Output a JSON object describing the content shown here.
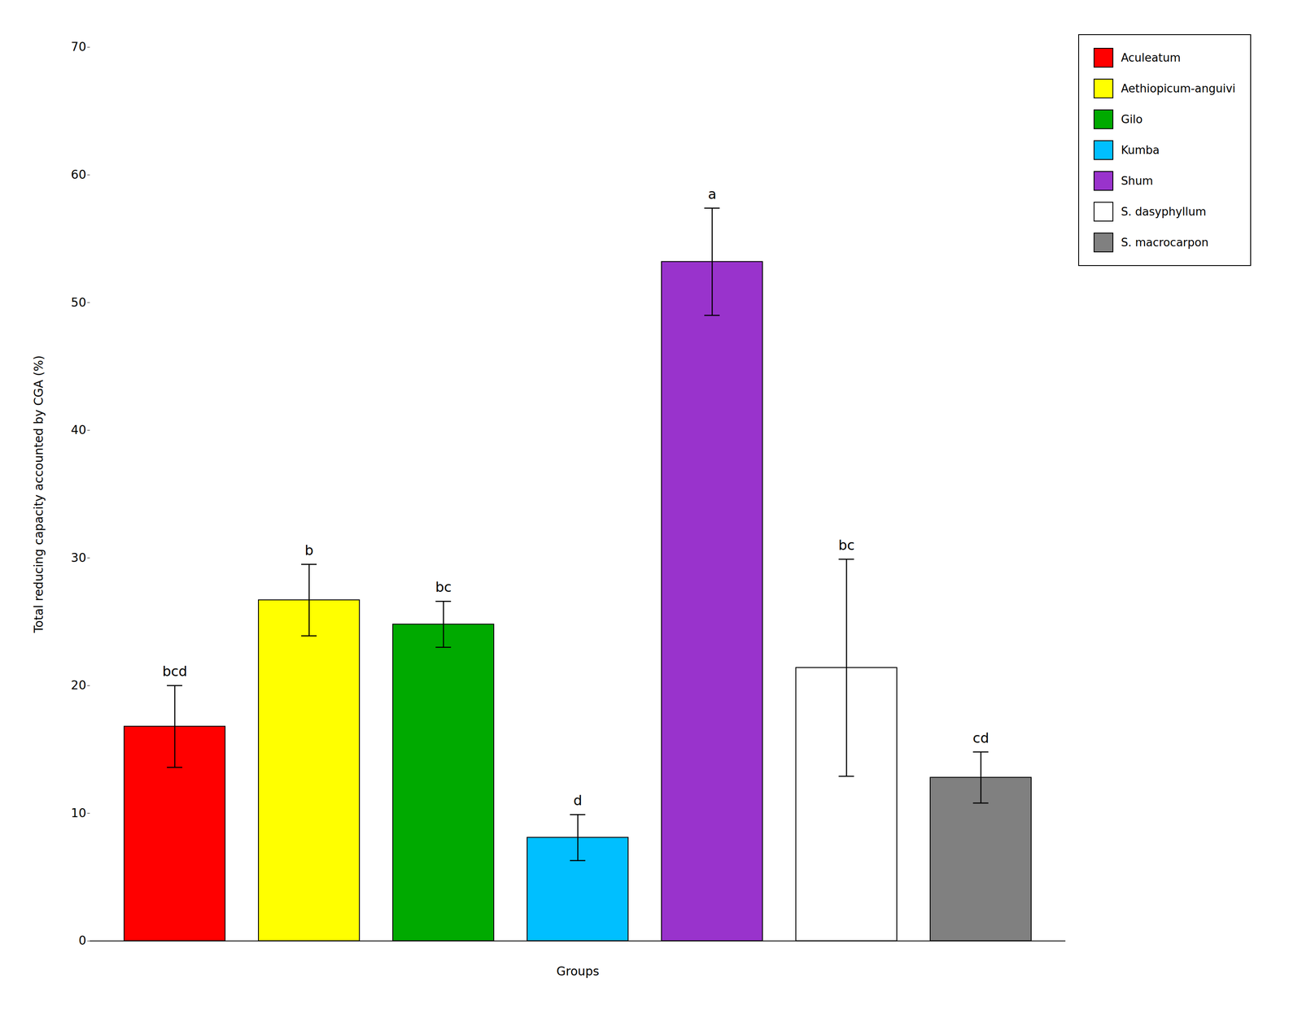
{
  "chart_data": {
    "type": "bar",
    "categories": [
      "Aculeatum",
      "Aethiopicum-anguivi",
      "Gilo",
      "Kumba",
      "Shum",
      "S. dasyphyllum",
      "S. macrocarpon"
    ],
    "values": [
      16.8,
      26.7,
      24.8,
      8.1,
      53.2,
      21.4,
      12.8
    ],
    "errors": [
      3.2,
      2.8,
      1.8,
      1.8,
      4.2,
      8.5,
      2.0
    ],
    "colors": [
      "#ff0000",
      "#ffff00",
      "#00aa00",
      "#00bfff",
      "#9933cc",
      "#ffffff",
      "#808080"
    ],
    "annotations": [
      "bcd",
      "b",
      "bc",
      "d",
      "a",
      "bc",
      "cd"
    ],
    "ylabel": "Total reducing capacity accounted by CGA (%)",
    "xlabel": "Groups",
    "ylim": [
      0,
      70
    ],
    "yticks": [
      0,
      10,
      20,
      30,
      40,
      50,
      60,
      70
    ],
    "legend": "upper right",
    "tick_labels": "y"
  }
}
